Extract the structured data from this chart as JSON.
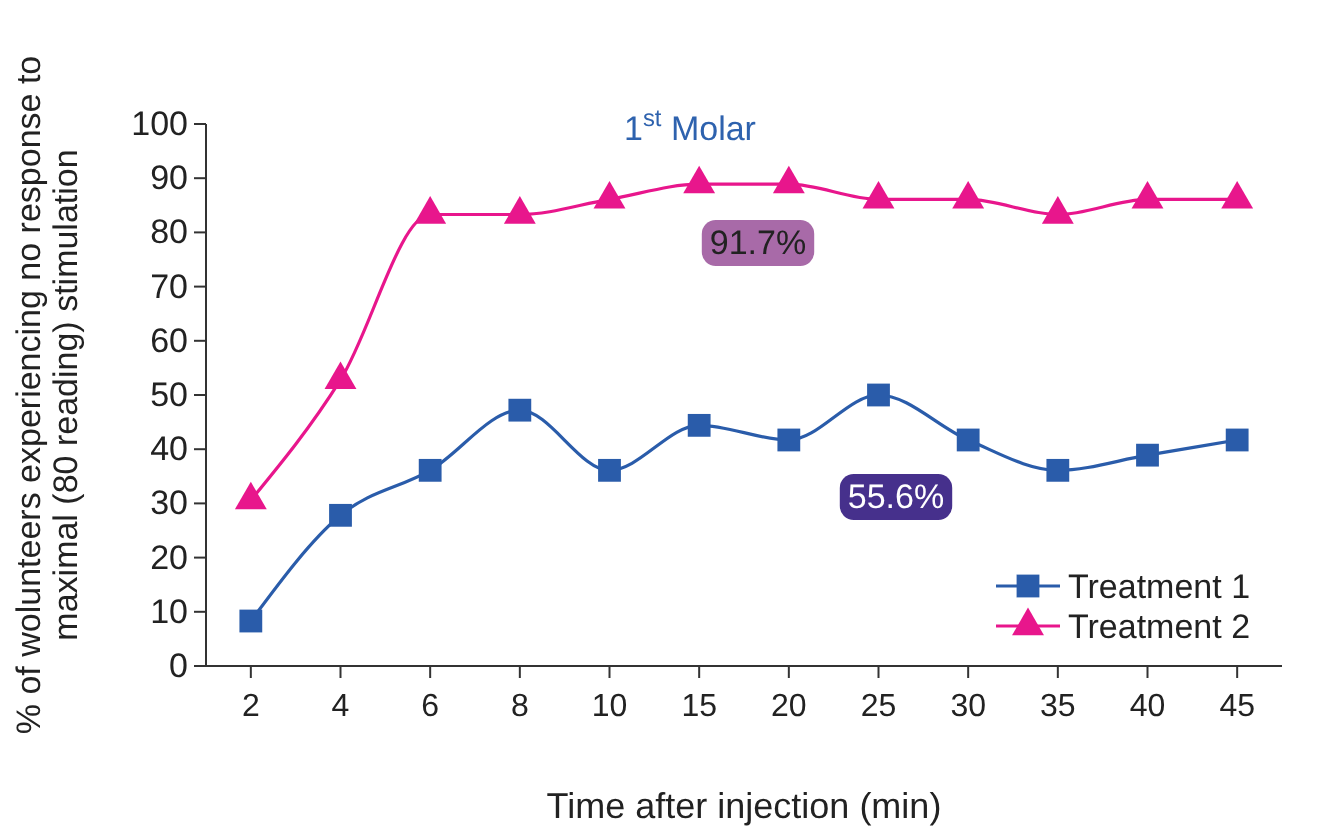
{
  "chart_data": {
    "type": "line",
    "title": "1$^{st}$ Molar",
    "xlabel": "Time after injection (min)",
    "ylabel": "% of wolunteers experiencing no response to maximal (80 reading) stimulation",
    "categories": [
      "2",
      "4",
      "6",
      "8",
      "10",
      "15",
      "20",
      "25",
      "30",
      "35",
      "40",
      "45"
    ],
    "series": [
      {
        "name": "Treatment 1",
        "color": "#2a5caa",
        "marker": "square",
        "values": [
          8.3,
          27.8,
          36.1,
          47.2,
          36.1,
          44.4,
          41.7,
          50,
          41.7,
          36.1,
          38.9,
          41.7
        ]
      },
      {
        "name": "Treatment 2",
        "color": "#e8168c",
        "marker": "triangle",
        "values": [
          30.6,
          52.8,
          83.3,
          83.3,
          86.1,
          88.9,
          88.9,
          86.1,
          86.1,
          83.3,
          86.1,
          86.1
        ]
      }
    ],
    "annotations": [
      "91.7%",
      "55.6%"
    ],
    "ylim": [
      0,
      100
    ],
    "yticks": [
      0,
      10,
      20,
      30,
      40,
      50,
      60,
      70,
      80,
      90,
      100
    ],
    "grid": false,
    "legend": "bottom right",
    "line_style": "solid"
  }
}
